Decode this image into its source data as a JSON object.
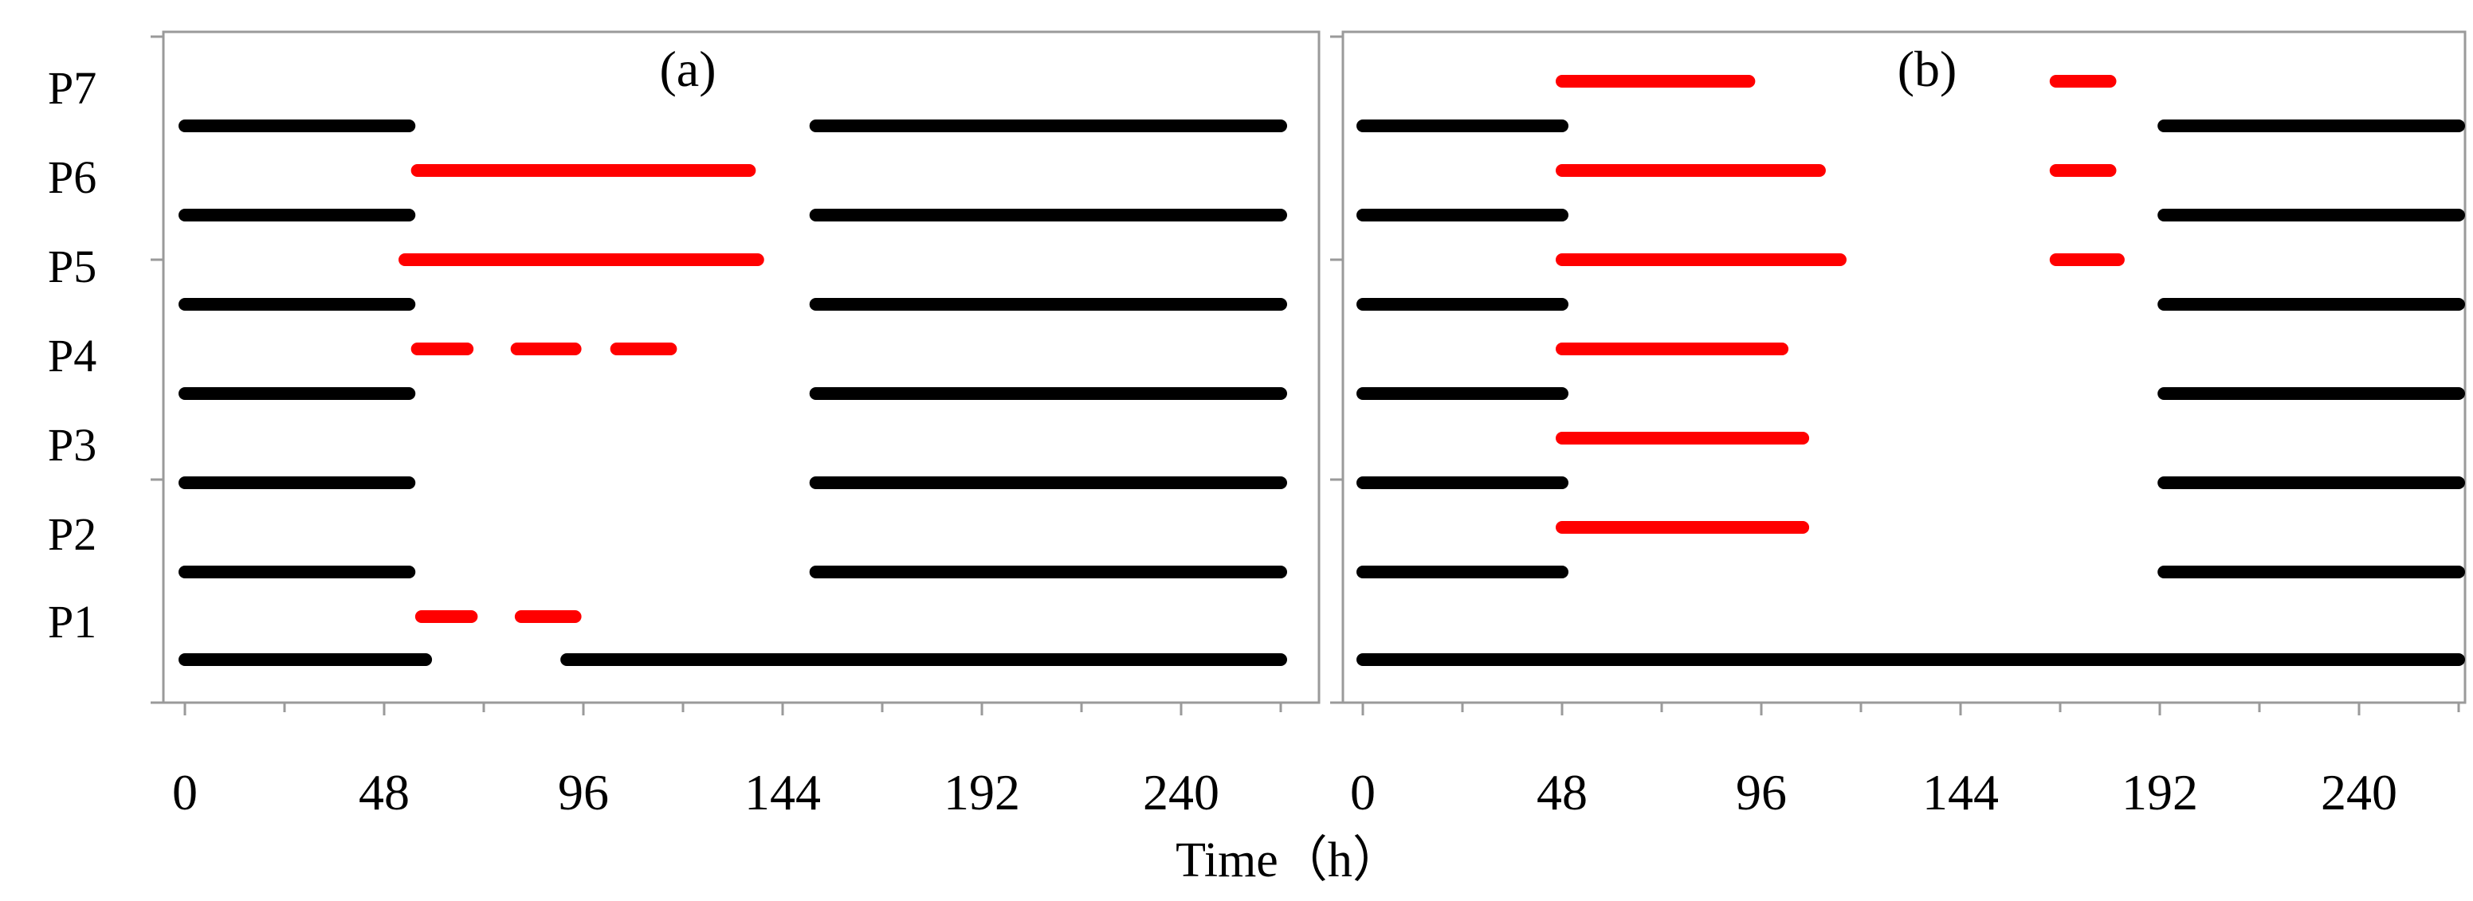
{
  "chart_data": {
    "type": "gantt",
    "xlabel": "Time（h）",
    "y_categories": [
      "P1",
      "P2",
      "P3",
      "P4",
      "P5",
      "P6",
      "P7"
    ],
    "xlim": [
      0,
      264
    ],
    "xticks": [
      0,
      48,
      96,
      144,
      192,
      240
    ],
    "colors": {
      "normal": "#000000",
      "disrupted": "#ff0000"
    },
    "panels": [
      {
        "label": "(a)",
        "black_bars": [
          {
            "row": "P1",
            "start": 0,
            "end": 58
          },
          {
            "row": "P1",
            "start": 92,
            "end": 264
          },
          {
            "row": "P2",
            "start": 0,
            "end": 54
          },
          {
            "row": "P2",
            "start": 152,
            "end": 264
          },
          {
            "row": "P3",
            "start": 0,
            "end": 54
          },
          {
            "row": "P3",
            "start": 152,
            "end": 264
          },
          {
            "row": "P4",
            "start": 0,
            "end": 54
          },
          {
            "row": "P4",
            "start": 152,
            "end": 264
          },
          {
            "row": "P5",
            "start": 0,
            "end": 54
          },
          {
            "row": "P5",
            "start": 152,
            "end": 264
          },
          {
            "row": "P6",
            "start": 0,
            "end": 54
          },
          {
            "row": "P6",
            "start": 152,
            "end": 264
          },
          {
            "row": "P7",
            "start": 0,
            "end": 54
          },
          {
            "row": "P7",
            "start": 152,
            "end": 264
          }
        ],
        "red_bars": [
          {
            "row": "P1",
            "start": 57,
            "end": 69
          },
          {
            "row": "P1",
            "start": 81,
            "end": 94
          },
          {
            "row": "P4",
            "start": 56,
            "end": 68
          },
          {
            "row": "P4",
            "start": 80,
            "end": 94
          },
          {
            "row": "P4",
            "start": 104,
            "end": 117
          },
          {
            "row": "P5",
            "start": 53,
            "end": 138
          },
          {
            "row": "P6",
            "start": 56,
            "end": 136
          }
        ]
      },
      {
        "label": "(b)",
        "black_bars": [
          {
            "row": "P1",
            "start": 0,
            "end": 264
          },
          {
            "row": "P2",
            "start": 0,
            "end": 48
          },
          {
            "row": "P2",
            "start": 193,
            "end": 264
          },
          {
            "row": "P3",
            "start": 0,
            "end": 48
          },
          {
            "row": "P3",
            "start": 193,
            "end": 264
          },
          {
            "row": "P4",
            "start": 0,
            "end": 48
          },
          {
            "row": "P4",
            "start": 193,
            "end": 264
          },
          {
            "row": "P5",
            "start": 0,
            "end": 48
          },
          {
            "row": "P5",
            "start": 193,
            "end": 264
          },
          {
            "row": "P6",
            "start": 0,
            "end": 48
          },
          {
            "row": "P6",
            "start": 193,
            "end": 264
          },
          {
            "row": "P7",
            "start": 0,
            "end": 48
          },
          {
            "row": "P7",
            "start": 193,
            "end": 264
          }
        ],
        "red_bars": [
          {
            "row": "P2",
            "start": 48,
            "end": 106
          },
          {
            "row": "P3",
            "start": 48,
            "end": 106
          },
          {
            "row": "P4",
            "start": 48,
            "end": 101
          },
          {
            "row": "P5",
            "start": 48,
            "end": 115
          },
          {
            "row": "P5",
            "start": 167,
            "end": 182
          },
          {
            "row": "P6",
            "start": 48,
            "end": 110
          },
          {
            "row": "P6",
            "start": 167,
            "end": 180
          },
          {
            "row": "P7",
            "start": 48,
            "end": 93
          },
          {
            "row": "P7",
            "start": 167,
            "end": 180
          }
        ]
      }
    ]
  }
}
